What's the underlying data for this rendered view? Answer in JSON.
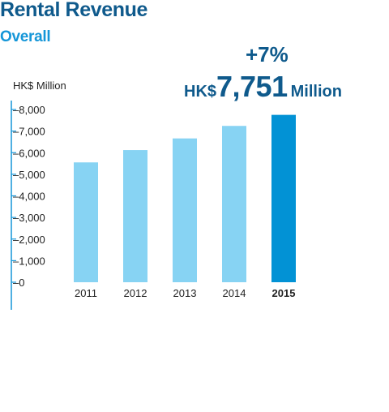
{
  "header": {
    "title": "Rental Revenue",
    "subtitle": "Overall"
  },
  "highlight": {
    "growth": "+7%",
    "currency": "HK$",
    "value": "7,751",
    "unit": "Million"
  },
  "chart_data": {
    "type": "bar",
    "ylabel": "HK$ Million",
    "xlabel": "",
    "ylim": [
      0,
      8000
    ],
    "yticks": [
      0,
      1000,
      2000,
      3000,
      4000,
      5000,
      6000,
      7000,
      8000
    ],
    "ytick_labels": [
      "0",
      "1,000",
      "2,000",
      "3,000",
      "4,000",
      "5,000",
      "6,000",
      "7,000",
      "8,000"
    ],
    "categories": [
      "2011",
      "2012",
      "2013",
      "2014",
      "2015"
    ],
    "values": [
      5550,
      6120,
      6660,
      7240,
      7751
    ],
    "highlight_index": 4,
    "colors": {
      "bar": "#87d3f3",
      "highlight_bar": "#0292d5",
      "axis": "#1596d8",
      "tick_text": "#222222"
    },
    "grid": false,
    "legend": "none"
  }
}
